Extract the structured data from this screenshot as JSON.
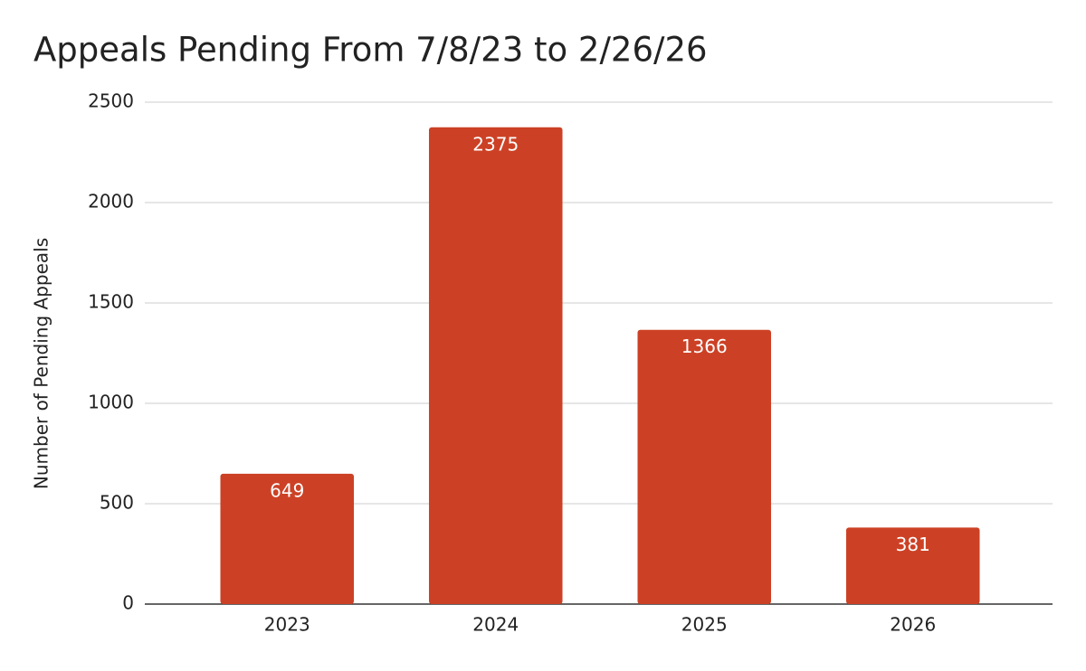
{
  "chart_data": {
    "type": "bar",
    "title": "Appeals Pending From 7/8/23 to 2/26/26",
    "y_label": "Number of Pending Appeals",
    "categories": [
      "2023",
      "2024",
      "2025",
      "2026"
    ],
    "values": [
      649,
      2375,
      1366,
      381
    ],
    "color": "#cc4125",
    "ylim": [
      0,
      2500
    ],
    "yticks": [
      0,
      500,
      1000,
      1500,
      2000,
      2500
    ],
    "grid": true
  }
}
